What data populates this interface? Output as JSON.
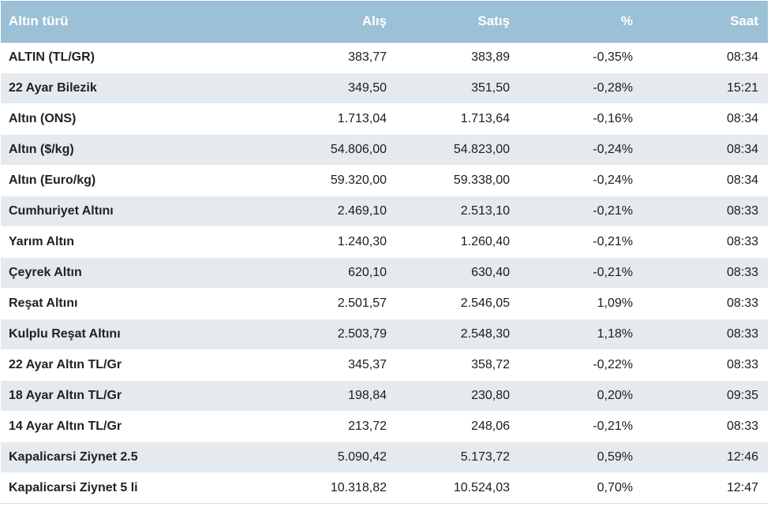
{
  "table": {
    "headers": {
      "type": "Altın türü",
      "buy": "Alış",
      "sell": "Satış",
      "change": "%",
      "time": "Saat"
    },
    "rows": [
      {
        "name": "ALTIN (TL/GR)",
        "buy": "383,77",
        "sell": "383,89",
        "change": "-0,35%",
        "time": "08:34"
      },
      {
        "name": "22 Ayar Bilezik",
        "buy": "349,50",
        "sell": "351,50",
        "change": "-0,28%",
        "time": "15:21"
      },
      {
        "name": "Altın (ONS)",
        "buy": "1.713,04",
        "sell": "1.713,64",
        "change": "-0,16%",
        "time": "08:34"
      },
      {
        "name": "Altın ($/kg)",
        "buy": "54.806,00",
        "sell": "54.823,00",
        "change": "-0,24%",
        "time": "08:34"
      },
      {
        "name": "Altın (Euro/kg)",
        "buy": "59.320,00",
        "sell": "59.338,00",
        "change": "-0,24%",
        "time": "08:34"
      },
      {
        "name": "Cumhuriyet Altını",
        "buy": "2.469,10",
        "sell": "2.513,10",
        "change": "-0,21%",
        "time": "08:33"
      },
      {
        "name": "Yarım Altın",
        "buy": "1.240,30",
        "sell": "1.260,40",
        "change": "-0,21%",
        "time": "08:33"
      },
      {
        "name": "Çeyrek Altın",
        "buy": "620,10",
        "sell": "630,40",
        "change": "-0,21%",
        "time": "08:33"
      },
      {
        "name": "Reşat Altını",
        "buy": "2.501,57",
        "sell": "2.546,05",
        "change": "1,09%",
        "time": "08:33"
      },
      {
        "name": "Kulplu Reşat Altını",
        "buy": "2.503,79",
        "sell": "2.548,30",
        "change": "1,18%",
        "time": "08:33"
      },
      {
        "name": "22 Ayar Altın TL/Gr",
        "buy": "345,37",
        "sell": "358,72",
        "change": "-0,22%",
        "time": "08:33"
      },
      {
        "name": "18 Ayar Altın TL/Gr",
        "buy": "198,84",
        "sell": "230,80",
        "change": "0,20%",
        "time": "09:35"
      },
      {
        "name": "14 Ayar Altın TL/Gr",
        "buy": "213,72",
        "sell": "248,06",
        "change": "-0,21%",
        "time": "08:33"
      },
      {
        "name": "Kapalicarsi Ziynet 2.5",
        "buy": "5.090,42",
        "sell": "5.173,72",
        "change": "0,59%",
        "time": "12:46"
      },
      {
        "name": "Kapalicarsi Ziynet 5 li",
        "buy": "10.318,82",
        "sell": "10.524,03",
        "change": "0,70%",
        "time": "12:47"
      }
    ]
  },
  "colors": {
    "header_bg": "#9cc0d6",
    "header_text": "#ffffff",
    "row_alt_bg": "#e5eaee",
    "row_bg": "#ffffff"
  }
}
